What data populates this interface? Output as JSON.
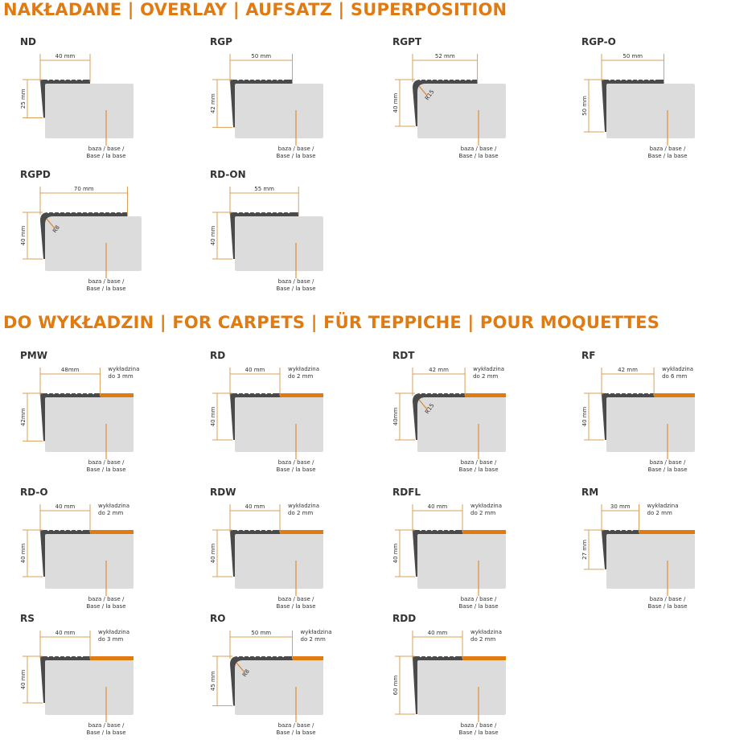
{
  "colors": {
    "accent": "#e07b12",
    "profile": "#4a4a4a",
    "base": "#dcdcdc",
    "dimension": "#d9a05a"
  },
  "base_label": [
    "baza / base /",
    "Base / la base"
  ],
  "sections": [
    {
      "title": "NAKŁADANE | OVERLAY | AUFSATZ | SUPERPOSITION",
      "profiles": [
        {
          "name": "ND",
          "width": "40 mm",
          "width_mm": 40,
          "height": "25 mm",
          "height_mm": 25
        },
        {
          "name": "RGP",
          "width": "50 mm",
          "width_mm": 50,
          "height": "42 mm",
          "height_mm": 42
        },
        {
          "name": "RGPT",
          "width": "52 mm",
          "width_mm": 52,
          "height": "40 mm",
          "height_mm": 40,
          "radius": "R15"
        },
        {
          "name": "RGP-O",
          "width": "50 mm",
          "width_mm": 50,
          "height": "50 mm",
          "height_mm": 50
        },
        {
          "name": "RGPD",
          "width": "70 mm",
          "width_mm": 70,
          "height": "40 mm",
          "height_mm": 40,
          "radius": "R8"
        },
        {
          "name": "RD-ON",
          "width": "55 mm",
          "width_mm": 55,
          "height": "40 mm",
          "height_mm": 40
        }
      ]
    },
    {
      "title": "DO WYKŁADZIN | FOR CARPETS | FÜR TEPPICHE | POUR MOQUETTES",
      "profiles": [
        {
          "name": "PMW",
          "width": "48mm",
          "width_mm": 48,
          "height": "42mm",
          "height_mm": 42,
          "carpet": [
            "wykładzina",
            "do 3 mm"
          ]
        },
        {
          "name": "RD",
          "width": "40 mm",
          "width_mm": 40,
          "height": "40 mm",
          "height_mm": 40,
          "carpet": [
            "wykładzina",
            "do 2 mm"
          ]
        },
        {
          "name": "RDT",
          "width": "42 mm",
          "width_mm": 42,
          "height": "40mm",
          "height_mm": 40,
          "radius": "R15",
          "carpet": [
            "wykładzina",
            "do 2 mm"
          ]
        },
        {
          "name": "RF",
          "width": "42 mm",
          "width_mm": 42,
          "height": "40 mm",
          "height_mm": 40,
          "carpet": [
            "wykładzina",
            "do 6 mm"
          ]
        },
        {
          "name": "RD-O",
          "width": "40 mm",
          "width_mm": 40,
          "height": "40 mm",
          "height_mm": 40,
          "carpet": [
            "wykładzina",
            "do 2 mm"
          ]
        },
        {
          "name": "RDW",
          "width": "40 mm",
          "width_mm": 40,
          "height": "40 mm",
          "height_mm": 40,
          "carpet": [
            "wykładzina",
            "do 2 mm"
          ]
        },
        {
          "name": "RDFL",
          "width": "40 mm",
          "width_mm": 40,
          "height": "40 mm",
          "height_mm": 40,
          "carpet": [
            "wykładzina",
            "do 2 mm"
          ]
        },
        {
          "name": "RM",
          "width": "30 mm",
          "width_mm": 30,
          "height": "27 mm",
          "height_mm": 27,
          "carpet": [
            "wykładzina",
            "do 2 mm"
          ]
        },
        {
          "name": "RS",
          "width": "40 mm",
          "width_mm": 40,
          "height": "40 mm",
          "height_mm": 40,
          "carpet": [
            "wykładzina",
            "do 3 mm"
          ]
        },
        {
          "name": "RO",
          "width": "50 mm",
          "width_mm": 50,
          "height": "45 mm",
          "height_mm": 45,
          "radius": "R8",
          "carpet": [
            "wykładzina",
            "do 2 mm"
          ]
        },
        {
          "name": "RDD",
          "width": "40 mm",
          "width_mm": 40,
          "height": "60 mm",
          "height_mm": 60,
          "carpet": [
            "wykładzina",
            "do 2 mm"
          ]
        }
      ]
    }
  ]
}
